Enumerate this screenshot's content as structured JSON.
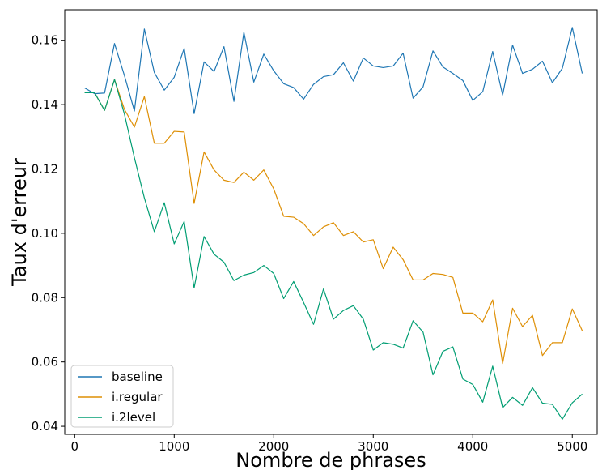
{
  "chart_data": {
    "type": "line",
    "xlabel": "Nombre de phrases",
    "ylabel": "Taux d'erreur",
    "xlim": [
      -100,
      5250
    ],
    "ylim": [
      0.0375,
      0.1695
    ],
    "xticks": [
      0,
      1000,
      2000,
      3000,
      4000,
      5000
    ],
    "yticks": [
      0.04,
      0.06,
      0.08,
      0.1,
      0.12,
      0.14,
      0.16
    ],
    "ytick_labels": [
      "0.04",
      "0.06",
      "0.08",
      "0.10",
      "0.12",
      "0.14",
      "0.16"
    ],
    "grid": false,
    "legend_position": "bottom-left",
    "x": [
      100,
      200,
      300,
      400,
      500,
      600,
      700,
      800,
      900,
      1000,
      1100,
      1200,
      1300,
      1400,
      1500,
      1600,
      1700,
      1800,
      1900,
      2000,
      2100,
      2200,
      2300,
      2400,
      2500,
      2600,
      2700,
      2800,
      2900,
      3000,
      3100,
      3200,
      3300,
      3400,
      3500,
      3600,
      3700,
      3800,
      3900,
      4000,
      4100,
      4200,
      4300,
      4400,
      4500,
      4600,
      4700,
      4800,
      4900,
      5000,
      5100
    ],
    "series": [
      {
        "name": "baseline",
        "color": "#1f77b4",
        "values": [
          0.1452,
          0.1434,
          0.1436,
          0.159,
          0.149,
          0.138,
          0.1635,
          0.15,
          0.1445,
          0.1485,
          0.1575,
          0.1372,
          0.1533,
          0.1503,
          0.158,
          0.141,
          0.1625,
          0.147,
          0.1557,
          0.1505,
          0.1465,
          0.1453,
          0.1417,
          0.1463,
          0.1487,
          0.1493,
          0.153,
          0.1473,
          0.1545,
          0.152,
          0.1515,
          0.152,
          0.156,
          0.142,
          0.1455,
          0.1567,
          0.1517,
          0.1497,
          0.1475,
          0.1413,
          0.144,
          0.1565,
          0.143,
          0.1585,
          0.1497,
          0.151,
          0.1535,
          0.1468,
          0.1513,
          0.164,
          0.1497
        ]
      },
      {
        "name": "i.regular",
        "color": "#de8f05",
        "values": [
          0.1437,
          0.1437,
          0.1382,
          0.1478,
          0.1385,
          0.133,
          0.1425,
          0.128,
          0.128,
          0.1317,
          0.1315,
          0.1093,
          0.1253,
          0.1197,
          0.1165,
          0.1158,
          0.119,
          0.1165,
          0.1197,
          0.1138,
          0.1053,
          0.105,
          0.103,
          0.0993,
          0.102,
          0.1033,
          0.0993,
          0.1005,
          0.0973,
          0.098,
          0.089,
          0.0957,
          0.0918,
          0.0855,
          0.0855,
          0.0875,
          0.0872,
          0.0863,
          0.0752,
          0.0752,
          0.0725,
          0.0793,
          0.0595,
          0.0767,
          0.071,
          0.0745,
          0.062,
          0.066,
          0.066,
          0.0765,
          0.0697
        ]
      },
      {
        "name": "i.2level",
        "color": "#029e73",
        "values": [
          0.1437,
          0.1437,
          0.1382,
          0.1478,
          0.137,
          0.1235,
          0.111,
          0.1005,
          0.1095,
          0.0967,
          0.1037,
          0.083,
          0.099,
          0.0935,
          0.091,
          0.0853,
          0.087,
          0.0878,
          0.09,
          0.0875,
          0.0797,
          0.085,
          0.0785,
          0.0717,
          0.0827,
          0.0733,
          0.076,
          0.0775,
          0.0733,
          0.0637,
          0.066,
          0.0655,
          0.0643,
          0.0728,
          0.0693,
          0.056,
          0.0633,
          0.0647,
          0.0547,
          0.053,
          0.0475,
          0.0587,
          0.0458,
          0.049,
          0.0465,
          0.052,
          0.0472,
          0.0468,
          0.0422,
          0.0473,
          0.05
        ]
      }
    ]
  }
}
